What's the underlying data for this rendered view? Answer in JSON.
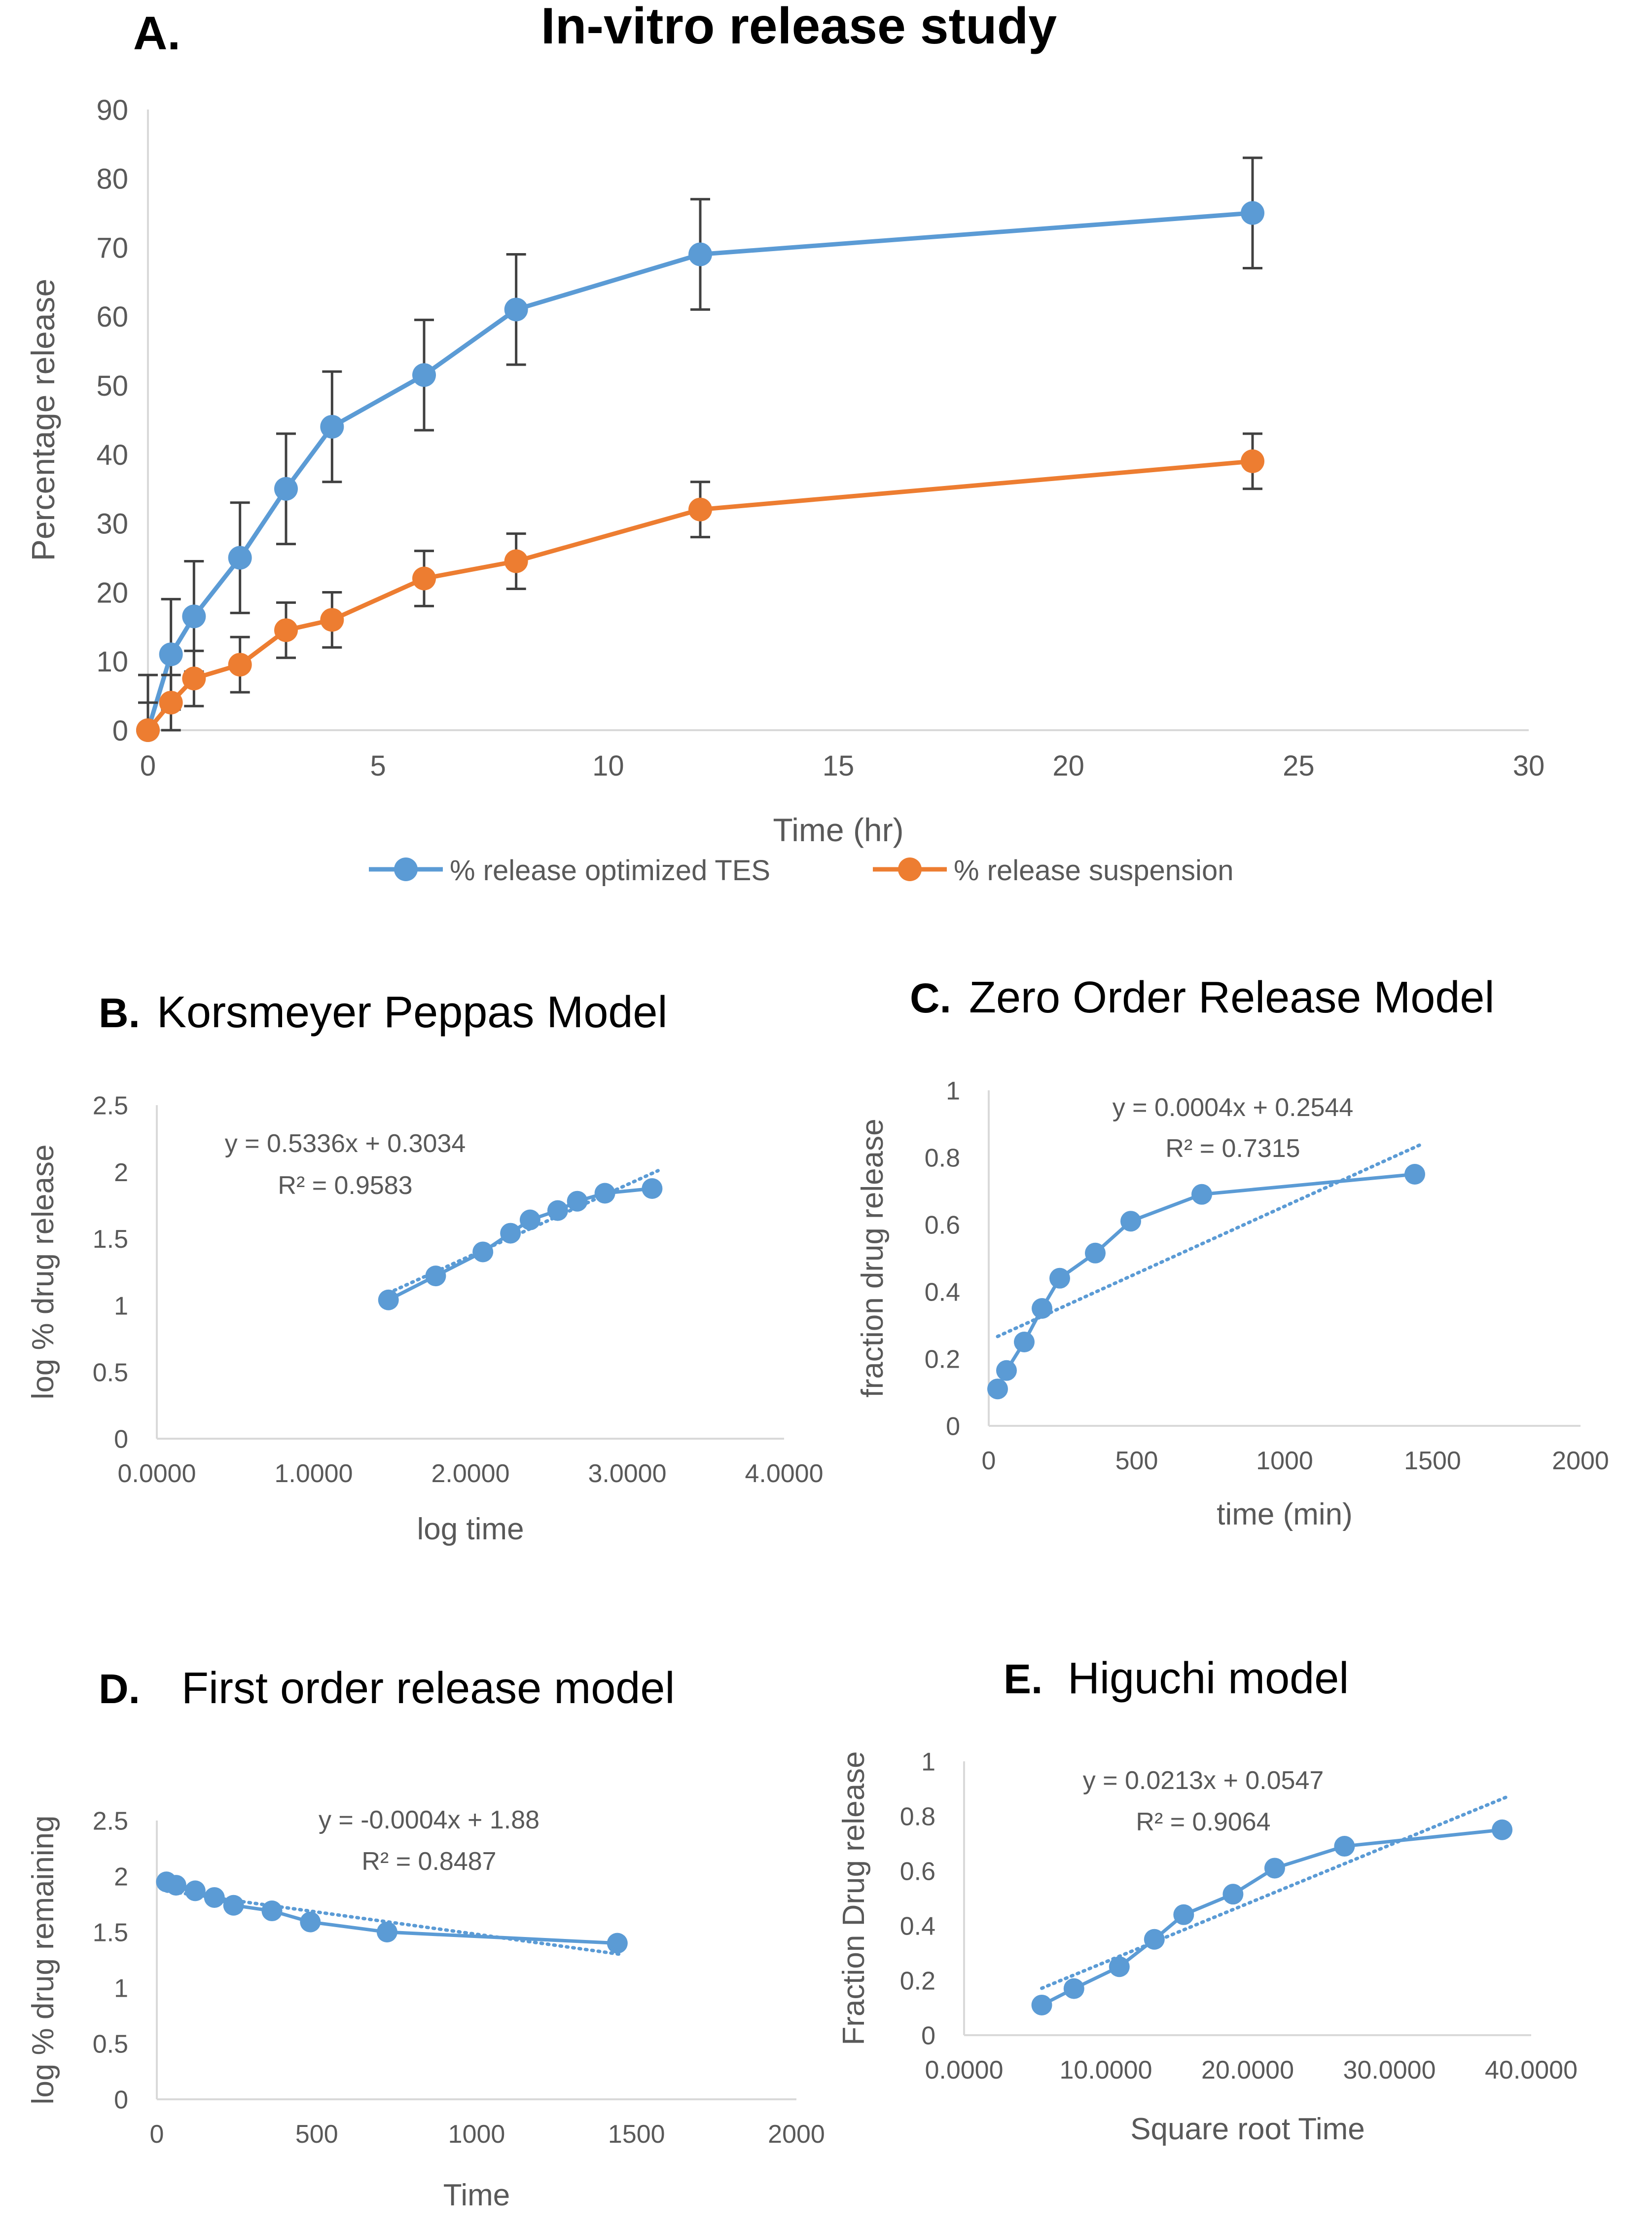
{
  "colors": {
    "blue": "#5b9bd5",
    "orange": "#ed7d31",
    "axis": "#d9d9d9",
    "text": "#595959",
    "title": "#000000",
    "err": "#404040"
  },
  "chart_data": [
    {
      "id": "A",
      "type": "line",
      "letter": "A.",
      "title": "In-vitro release study",
      "xlabel": "Time (hr)",
      "ylabel": "Percentage release",
      "xlim": [
        0,
        30
      ],
      "ylim": [
        0,
        90
      ],
      "xticks": [
        "0",
        "5",
        "10",
        "15",
        "20",
        "25",
        "30"
      ],
      "yticks": [
        "0",
        "10",
        "20",
        "30",
        "40",
        "50",
        "60",
        "70",
        "80",
        "90"
      ],
      "legend_position": "bottom",
      "series": [
        {
          "name": "% release optimized TES",
          "color": "blue",
          "x": [
            0,
            0.5,
            1,
            2,
            3,
            4,
            6,
            8,
            12,
            24
          ],
          "y": [
            0,
            11,
            16.5,
            25,
            35,
            44,
            51.5,
            61,
            69,
            75
          ],
          "err": [
            8,
            8,
            8,
            8,
            8,
            8,
            8,
            8,
            8,
            8
          ]
        },
        {
          "name": "% release  suspension",
          "color": "orange",
          "x": [
            0,
            0.5,
            1,
            2,
            3,
            4,
            6,
            8,
            12,
            24
          ],
          "y": [
            0,
            4,
            7.5,
            9.5,
            14.5,
            16,
            22,
            24.5,
            32,
            39
          ],
          "err": [
            4,
            4,
            4,
            4,
            4,
            4,
            4,
            4,
            4,
            4
          ]
        }
      ]
    },
    {
      "id": "B",
      "type": "scatter",
      "letter": "B.",
      "title": "Korsmeyer Peppas Model",
      "xlabel": "log time",
      "ylabel": "log % drug release",
      "xlim": [
        0,
        4
      ],
      "ylim": [
        0,
        2.5
      ],
      "xticks": [
        "0.0000",
        "1.0000",
        "2.0000",
        "3.0000",
        "4.0000"
      ],
      "yticks": [
        "0",
        "0.5",
        "1",
        "1.5",
        "2",
        "2.5"
      ],
      "equation": "y = 0.5336x + 0.3034",
      "r2": "R² = 0.9583",
      "trend": {
        "slope": 0.5336,
        "intercept": 0.3034,
        "x": [
          1.4771,
          3.1584
        ]
      },
      "x": [
        1.4771,
        1.7782,
        2.0792,
        2.2553,
        2.3802,
        2.5563,
        2.6812,
        2.8573,
        3.1584
      ],
      "y": [
        1.04,
        1.22,
        1.4,
        1.54,
        1.64,
        1.71,
        1.78,
        1.84,
        1.875
      ]
    },
    {
      "id": "C",
      "type": "scatter",
      "letter": "C.",
      "title": "Zero Order Release Model",
      "xlabel": "time (min)",
      "ylabel": "fraction drug release",
      "xlim": [
        0,
        2000
      ],
      "ylim": [
        0,
        1
      ],
      "xticks": [
        "0",
        "500",
        "1000",
        "1500",
        "2000"
      ],
      "yticks": [
        "0",
        "0.2",
        "0.4",
        "0.6",
        "0.8",
        "1"
      ],
      "equation": "y = 0.0004x + 0.2544",
      "r2": "R² = 0.7315",
      "trend": {
        "slope": 0.0004,
        "intercept": 0.2544,
        "x": [
          30,
          1440
        ]
      },
      "x": [
        30,
        60,
        120,
        180,
        240,
        360,
        480,
        720,
        1440
      ],
      "y": [
        0.11,
        0.165,
        0.25,
        0.35,
        0.44,
        0.515,
        0.61,
        0.69,
        0.75
      ]
    },
    {
      "id": "D",
      "type": "scatter",
      "letter": "D.",
      "title": "First order release model",
      "xlabel": "Time",
      "ylabel": "log % drug remaining",
      "xlim": [
        0,
        2000
      ],
      "ylim": [
        0,
        2.5
      ],
      "xticks": [
        "0",
        "500",
        "1000",
        "1500",
        "2000"
      ],
      "yticks": [
        "0",
        "0.5",
        "1",
        "1.5",
        "2",
        "2.5"
      ],
      "equation": "y = -0.0004x + 1.88",
      "r2": "R² = 0.8487",
      "trend": {
        "slope": -0.0004,
        "intercept": 1.88,
        "x": [
          30,
          1440
        ]
      },
      "x": [
        30,
        60,
        120,
        180,
        240,
        360,
        480,
        720,
        1440
      ],
      "y": [
        1.95,
        1.92,
        1.87,
        1.81,
        1.74,
        1.69,
        1.59,
        1.5,
        1.4
      ]
    },
    {
      "id": "E",
      "type": "scatter",
      "letter": "E.",
      "title": "Higuchi model",
      "xlabel": "Square root Time",
      "ylabel": "Fraction Drug release",
      "xlim": [
        0,
        40
      ],
      "ylim": [
        0,
        1
      ],
      "xticks": [
        "0.0000",
        "10.0000",
        "20.0000",
        "30.0000",
        "40.0000"
      ],
      "yticks": [
        "0",
        "0.2",
        "0.4",
        "0.6",
        "0.8",
        "1"
      ],
      "equation": "y = 0.0213x + 0.0547",
      "r2": "R² = 0.9064",
      "trend": {
        "slope": 0.0213,
        "intercept": 0.0547,
        "x": [
          5.48,
          37.95
        ]
      },
      "x": [
        5.48,
        7.75,
        10.95,
        13.42,
        15.49,
        18.97,
        21.91,
        26.83,
        37.95
      ],
      "y": [
        0.11,
        0.17,
        0.25,
        0.35,
        0.44,
        0.515,
        0.61,
        0.69,
        0.75
      ]
    }
  ]
}
